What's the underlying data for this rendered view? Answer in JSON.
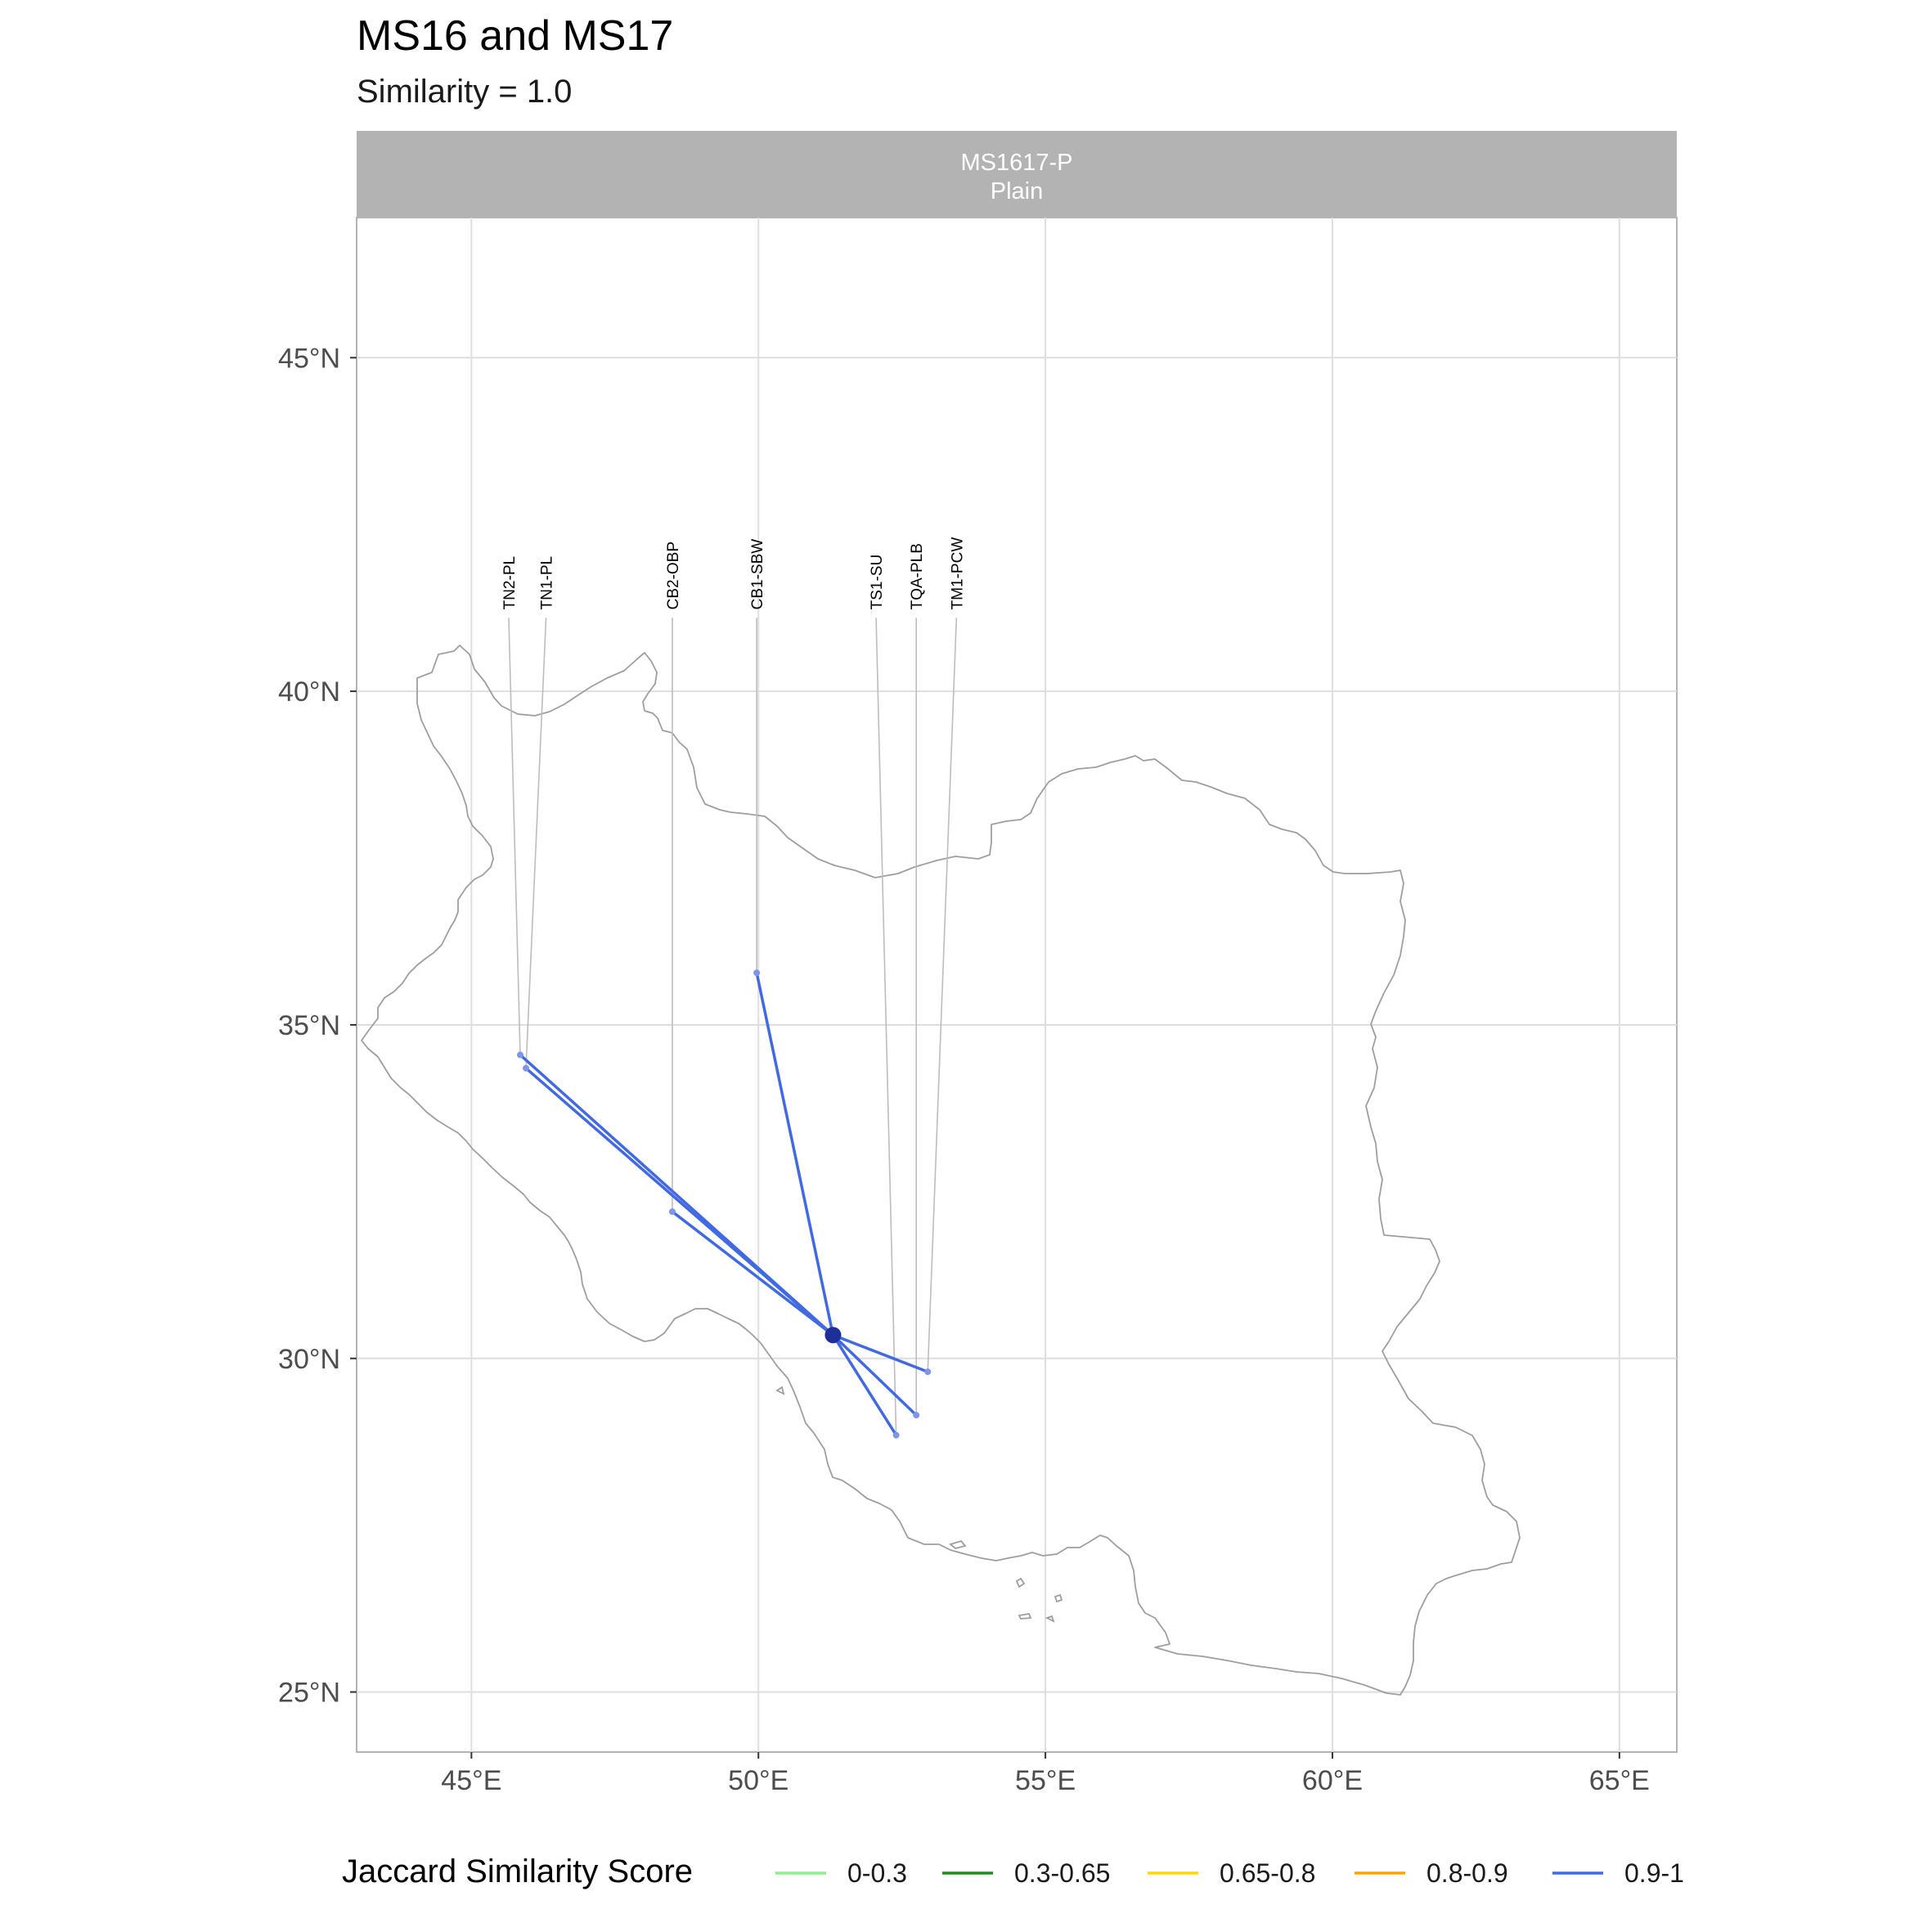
{
  "title": "MS16 and MS17",
  "subtitle": "Similarity = 1.0",
  "facet": {
    "line1": "MS1617-P",
    "line2": "Plain"
  },
  "axes": {
    "x_ticks": [
      {
        "value": 45,
        "label": "45°E"
      },
      {
        "value": 50,
        "label": "50°E"
      },
      {
        "value": 55,
        "label": "55°E"
      },
      {
        "value": 60,
        "label": "60°E"
      },
      {
        "value": 65,
        "label": "65°E"
      }
    ],
    "y_ticks": [
      {
        "value": 45,
        "label": "45°N"
      },
      {
        "value": 40,
        "label": "40°N"
      },
      {
        "value": 35,
        "label": "35°N"
      },
      {
        "value": 30,
        "label": "30°N"
      },
      {
        "value": 25,
        "label": "25°N"
      }
    ],
    "xlim": [
      43.0,
      66.0
    ],
    "ylim": [
      24.1,
      47.1
    ]
  },
  "hub": {
    "lon": 51.3,
    "lat": 30.35,
    "color": "#1f2f99"
  },
  "sites": [
    {
      "name": "TN2-PL",
      "lon": 45.85,
      "lat": 34.55,
      "label_lon": 45.65
    },
    {
      "name": "TN1-PL",
      "lon": 45.95,
      "lat": 34.35,
      "label_lon": 46.3
    },
    {
      "name": "CB2-OBP",
      "lon": 48.5,
      "lat": 32.2,
      "label_lon": 48.5
    },
    {
      "name": "CB1-SBW",
      "lon": 49.97,
      "lat": 35.78,
      "label_lon": 49.97
    },
    {
      "name": "TS1-SU",
      "lon": 52.4,
      "lat": 28.85,
      "label_lon": 52.05
    },
    {
      "name": "TQA-PLB",
      "lon": 52.75,
      "lat": 29.15,
      "label_lon": 52.75
    },
    {
      "name": "TM1-PCW",
      "lon": 52.95,
      "lat": 29.8,
      "label_lon": 53.45
    }
  ],
  "connection_color": "#4169e1",
  "legend": {
    "title": "Jaccard Similarity Score",
    "items": [
      {
        "label": "0-0.3",
        "color": "#90ee90"
      },
      {
        "label": "0.3-0.65",
        "color": "#228b22"
      },
      {
        "label": "0.65-0.8",
        "color": "#ffd700"
      },
      {
        "label": "0.8-0.9",
        "color": "#ffa500"
      },
      {
        "label": "0.9-1",
        "color": "#4169e1"
      }
    ]
  }
}
